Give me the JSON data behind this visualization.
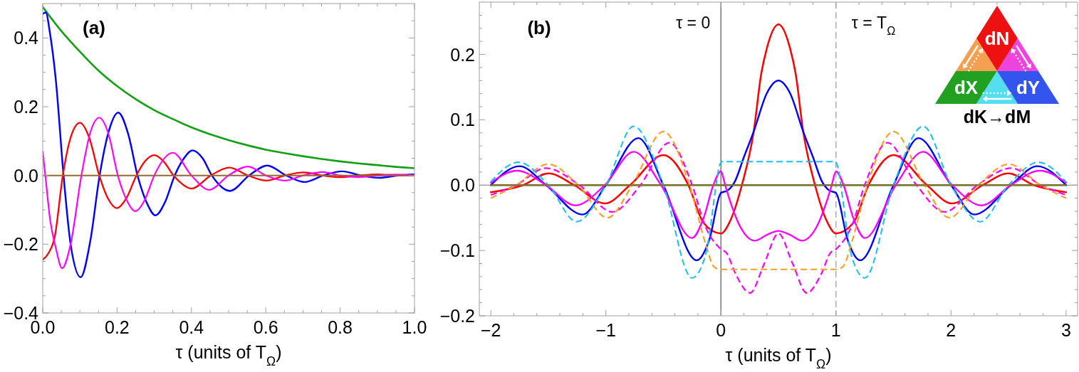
{
  "chart_data": [
    {
      "type": "line",
      "title": "(a)",
      "xlabel": "τ (units of T$_{Ω}$)",
      "xlim": [
        0,
        1
      ],
      "ylim": [
        -0.4,
        0.5
      ],
      "xticks": [
        {
          "value": 0,
          "label": "0.0"
        },
        {
          "value": 0.05,
          "label": null
        },
        {
          "value": 0.1,
          "label": null
        },
        {
          "value": 0.15,
          "label": null
        },
        0.2,
        {
          "value": 0.25,
          "label": null
        },
        {
          "value": 0.3,
          "label": null
        },
        {
          "value": 0.35,
          "label": null
        },
        0.4,
        {
          "value": 0.45,
          "label": null
        },
        {
          "value": 0.5,
          "label": null
        },
        {
          "value": 0.55,
          "label": null
        },
        0.6,
        {
          "value": 0.65,
          "label": null
        },
        {
          "value": 0.7,
          "label": null
        },
        {
          "value": 0.75,
          "label": null
        },
        0.8,
        {
          "value": 0.85,
          "label": null
        },
        {
          "value": 0.9,
          "label": null
        },
        {
          "value": 0.95,
          "label": null
        },
        {
          "value": 1,
          "label": "1.0"
        }
      ],
      "yticks": [
        {
          "value": -0.4,
          "label": "−0.4"
        },
        {
          "value": -0.35,
          "label": null
        },
        {
          "value": -0.3,
          "label": null
        },
        {
          "value": -0.25,
          "label": null
        },
        {
          "value": -0.2,
          "label": "−0.2"
        },
        {
          "value": -0.15,
          "label": null
        },
        {
          "value": -0.1,
          "label": null
        },
        {
          "value": -0.05,
          "label": null
        },
        {
          "value": 0,
          "label": "0.0"
        },
        {
          "value": 0.05,
          "label": null
        },
        {
          "value": 0.1,
          "label": null
        },
        {
          "value": 0.15,
          "label": null
        },
        0.2,
        {
          "value": 0.25,
          "label": null
        },
        {
          "value": 0.3,
          "label": null
        },
        {
          "value": 0.35,
          "label": null
        },
        0.4,
        {
          "value": 0.45,
          "label": null
        }
      ],
      "series": [
        {
          "color": "#14a014",
          "x": [
            0,
            0.05,
            0.1,
            0.15,
            0.2,
            0.25,
            0.3,
            0.35,
            0.4,
            0.45,
            0.5,
            0.55,
            0.6,
            0.65,
            0.7,
            0.75,
            0.8,
            0.85,
            0.9,
            0.95,
            1
          ],
          "values": [
            0.49,
            0.42,
            0.36,
            0.305,
            0.26,
            0.222,
            0.19,
            0.164,
            0.14,
            0.12,
            0.103,
            0.088,
            0.075,
            0.065,
            0.056,
            0.048,
            0.041,
            0.035,
            0.03,
            0.025,
            0.021
          ]
        },
        {
          "color": "#0000ff",
          "x": [
            0,
            0.008,
            0.02,
            0.035,
            0.056,
            0.075,
            0.102,
            0.128,
            0.153,
            0.178,
            0.203,
            0.23,
            0.255,
            0.28,
            0.303,
            0.33,
            0.355,
            0.38,
            0.403,
            0.43,
            0.455,
            0.504,
            0.555,
            0.604,
            0.655,
            0.704,
            0.755,
            0.805,
            0.855,
            0.905,
            0.955,
            1
          ],
          "values": [
            0.47,
            0.474,
            0.41,
            0.28,
            0,
            -0.2,
            -0.296,
            -0.19,
            0,
            0.13,
            0.183,
            0.12,
            0,
            -0.08,
            -0.116,
            -0.075,
            0,
            0.05,
            0.073,
            0.05,
            0,
            -0.045,
            0,
            0.029,
            0,
            -0.019,
            0,
            0.012,
            0,
            -0.007,
            0,
            0.003
          ]
        },
        {
          "color": "#ff0000",
          "x": [
            0,
            0.016,
            0.032,
            0.054,
            0.075,
            0.1,
            0.125,
            0.152,
            0.175,
            0.199,
            0.225,
            0.252,
            0.275,
            0.3,
            0.325,
            0.352,
            0.401,
            0.452,
            0.502,
            0.552,
            0.602,
            0.652,
            0.702,
            0.752,
            0.802,
            0.852,
            0.902,
            0.952,
            1
          ],
          "values": [
            -0.245,
            -0.225,
            -0.18,
            0,
            0.11,
            0.153,
            0.11,
            0,
            -0.066,
            -0.095,
            -0.066,
            0,
            0.041,
            0.059,
            0.041,
            0,
            -0.038,
            0,
            0.023,
            0,
            -0.015,
            0,
            0.009,
            0,
            -0.005,
            0,
            0.003,
            0,
            0
          ]
        },
        {
          "color": "#ff00ff",
          "x": [
            0,
            0.007,
            0.02,
            0.035,
            0.052,
            0.075,
            0.104,
            0.128,
            0.152,
            0.177,
            0.202,
            0.225,
            0.249,
            0.275,
            0.3,
            0.35,
            0.4,
            0.448,
            0.5,
            0.552,
            0.6,
            0.651,
            0.7,
            0.753,
            0.8,
            0.85,
            0.9,
            0.95,
            1
          ],
          "values": [
            0.069,
            0,
            -0.13,
            -0.21,
            -0.27,
            -0.2,
            0,
            0.125,
            0.168,
            0.12,
            0,
            -0.07,
            -0.104,
            -0.07,
            0,
            0.066,
            0,
            -0.042,
            0,
            0.026,
            0,
            -0.015,
            0,
            0.01,
            0,
            -0.005,
            0,
            0.003,
            0
          ]
        },
        {
          "color": "#996633",
          "x": [
            0,
            1
          ],
          "values": [
            0,
            0
          ]
        }
      ]
    },
    {
      "type": "line",
      "title": "(b)",
      "xlabel": "τ (units of T$_{Ω}$)",
      "xlim": [
        -2.1,
        3.1
      ],
      "ylim": [
        -0.2,
        0.28
      ],
      "xticks": [
        {
          "value": -2,
          "label": "−2"
        },
        {
          "value": -1.8,
          "label": null
        },
        {
          "value": -1.6,
          "label": null
        },
        {
          "value": -1.4,
          "label": null
        },
        {
          "value": -1.2,
          "label": null
        },
        {
          "value": -1,
          "label": "−1"
        },
        {
          "value": -0.8,
          "label": null
        },
        {
          "value": -0.6,
          "label": null
        },
        {
          "value": -0.4,
          "label": null
        },
        {
          "value": -0.2,
          "label": null
        },
        0,
        {
          "value": 0.2,
          "label": null
        },
        {
          "value": 0.4,
          "label": null
        },
        {
          "value": 0.6,
          "label": null
        },
        {
          "value": 0.8,
          "label": null
        },
        1,
        {
          "value": 1.2,
          "label": null
        },
        {
          "value": 1.4,
          "label": null
        },
        {
          "value": 1.6,
          "label": null
        },
        {
          "value": 1.8,
          "label": null
        },
        2,
        {
          "value": 2.2,
          "label": null
        },
        {
          "value": 2.4,
          "label": null
        },
        {
          "value": 2.6,
          "label": null
        },
        {
          "value": 2.8,
          "label": null
        },
        3
      ],
      "yticks": [
        {
          "value": -0.2,
          "label": "−0.2"
        },
        {
          "value": -0.18,
          "label": null
        },
        {
          "value": -0.16,
          "label": null
        },
        {
          "value": -0.14,
          "label": null
        },
        {
          "value": -0.12,
          "label": null
        },
        {
          "value": -0.1,
          "label": "−0.1"
        },
        {
          "value": -0.08,
          "label": null
        },
        {
          "value": -0.06,
          "label": null
        },
        {
          "value": -0.04,
          "label": null
        },
        {
          "value": -0.02,
          "label": null
        },
        {
          "value": 0,
          "label": "0.0"
        },
        {
          "value": 0.02,
          "label": null
        },
        {
          "value": 0.04,
          "label": null
        },
        {
          "value": 0.06,
          "label": null
        },
        {
          "value": 0.08,
          "label": null
        },
        0.1,
        {
          "value": 0.12,
          "label": null
        },
        {
          "value": 0.14,
          "label": null
        },
        {
          "value": 0.16,
          "label": null
        },
        {
          "value": 0.18,
          "label": null
        },
        0.2,
        {
          "value": 0.22,
          "label": null
        },
        {
          "value": 0.24,
          "label": null
        },
        {
          "value": 0.26,
          "label": null
        }
      ],
      "ref_lines": [
        {
          "axis": "y",
          "value": 0,
          "color": "#808080"
        },
        {
          "axis": "x",
          "value": 0,
          "label": "τ = 0",
          "color": "#555555"
        },
        {
          "axis": "x",
          "value": 1,
          "label": "τ = T$_{Ω}$",
          "color": "#999999",
          "line_style": "dashed"
        }
      ],
      "annotations": [
        "dN",
        "dX",
        "dY",
        "dK→dM"
      ],
      "series": [
        {
          "color": "#14a014",
          "x": [
            -2,
            3
          ],
          "values": [
            0,
            0
          ]
        },
        {
          "color": "#ff0000",
          "x": [
            -2,
            -1.72,
            -1.5,
            -1.275,
            -1.007,
            -0.79,
            -0.5,
            -0.283,
            -0.15,
            0,
            0.08,
            0.182,
            0.285,
            0.35,
            0.4,
            0.5,
            0.6,
            0.65,
            0.715,
            0.818,
            0.92,
            1,
            1.15,
            1.283,
            1.5,
            1.79,
            2.007,
            2.275,
            2.5,
            2.72,
            3
          ],
          "values": [
            -0.011,
            0,
            0.018,
            0,
            -0.028,
            0,
            0.046,
            0,
            -0.058,
            -0.074,
            -0.055,
            0,
            0.082,
            0.17,
            0.21,
            0.246,
            0.21,
            0.17,
            0.082,
            0,
            -0.055,
            -0.074,
            -0.058,
            0,
            0.046,
            0,
            -0.028,
            0,
            0.018,
            0,
            -0.011
          ]
        },
        {
          "color": "#0000ff",
          "x": [
            -2,
            -1.75,
            -1.52,
            -1.203,
            -1.0,
            -0.717,
            -0.5,
            -0.21,
            -0.1,
            0,
            0.06,
            0.12,
            0.2,
            0.285,
            0.4,
            0.5,
            0.6,
            0.715,
            0.8,
            0.88,
            0.94,
            1,
            1.1,
            1.21,
            1.5,
            1.717,
            2,
            2.203,
            2.52,
            2.75,
            3
          ],
          "values": [
            0,
            0.029,
            0,
            -0.045,
            0,
            0.072,
            0,
            -0.115,
            -0.083,
            -0.012,
            -0.008,
            0.005,
            0.043,
            0.082,
            0.141,
            0.16,
            0.141,
            0.082,
            0.043,
            0.005,
            -0.008,
            -0.012,
            -0.083,
            -0.115,
            0,
            0.072,
            0,
            -0.045,
            0,
            0.029,
            0
          ]
        },
        {
          "color": "#ff00ff",
          "x": [
            -2,
            -1.77,
            -1.52,
            -1.265,
            -1.01,
            -0.758,
            -0.52,
            -0.252,
            -0.15,
            -0.066,
            0,
            0.037,
            0.068,
            0.172,
            0.296,
            0.4,
            0.5,
            0.6,
            0.704,
            0.828,
            0.932,
            0.963,
            1,
            1.066,
            1.15,
            1.252,
            1.52,
            1.758,
            2.01,
            2.265,
            2.52,
            2.77,
            3
          ],
          "values": [
            0.004,
            0.022,
            0,
            -0.031,
            0,
            0.051,
            0,
            -0.081,
            -0.05,
            0,
            0.021,
            0,
            -0.018,
            -0.065,
            -0.085,
            -0.076,
            -0.07,
            -0.076,
            -0.085,
            -0.065,
            -0.018,
            0,
            0.021,
            0,
            -0.05,
            -0.081,
            0,
            0.051,
            0,
            -0.031,
            0,
            0.022,
            0.004
          ]
        },
        {
          "color": "#ff00ff",
          "line_style": "dashed",
          "x": [
            -2,
            -1.78,
            -1.523,
            -1.23,
            -0.944,
            -0.7,
            -0.448,
            -0.25,
            -0.138,
            0,
            0.05,
            0.125,
            0.254,
            0.377,
            0.5,
            0.623,
            0.746,
            0.875,
            0.95,
            1,
            1.138,
            1.25,
            1.448,
            1.7,
            1.944,
            2.23,
            2.523,
            2.78,
            3
          ],
          "values": [
            -0.015,
            0,
            0.026,
            0,
            -0.041,
            0,
            0.065,
            0,
            -0.062,
            -0.098,
            -0.104,
            -0.135,
            -0.165,
            -0.12,
            -0.074,
            -0.12,
            -0.165,
            -0.135,
            -0.104,
            -0.098,
            -0.062,
            0,
            0.065,
            0,
            -0.041,
            0,
            0.026,
            0,
            -0.015
          ]
        },
        {
          "color": "#fa9f2a",
          "line_style": "dashed",
          "x": [
            -2,
            -1.78,
            -1.502,
            -1.24,
            -0.986,
            -0.77,
            -0.5,
            -0.273,
            -0.138,
            -0.06,
            0,
            0.5,
            1,
            1.06,
            1.138,
            1.273,
            1.5,
            1.77,
            1.986,
            2.24,
            2.502,
            2.78,
            3
          ],
          "values": [
            -0.02,
            0,
            0.032,
            0,
            -0.05,
            0,
            0.082,
            0,
            -0.087,
            -0.125,
            -0.129,
            -0.129,
            -0.129,
            -0.125,
            -0.087,
            0,
            0.082,
            0,
            -0.05,
            0,
            0.032,
            0,
            -0.02
          ]
        },
        {
          "color": "#1ec0f0",
          "line_style": "dashed",
          "x": [
            -2,
            -1.76,
            -1.5,
            -1.254,
            -1.0,
            -0.758,
            -0.5,
            -0.252,
            -0.138,
            -0.1,
            -0.05,
            -0.014,
            0.01,
            0.5,
            0.99,
            1.014,
            1.05,
            1.1,
            1.138,
            1.252,
            1.5,
            1.758,
            2,
            2.254,
            2.5,
            2.76,
            3
          ],
          "values": [
            0.005,
            0.035,
            0,
            -0.056,
            0,
            0.09,
            0,
            -0.142,
            -0.11,
            -0.075,
            -0.01,
            0.029,
            0.036,
            0.036,
            0.036,
            0.029,
            -0.01,
            -0.075,
            -0.11,
            -0.142,
            0,
            0.09,
            0,
            -0.056,
            0,
            0.035,
            0.005
          ]
        },
        {
          "color": "#996633",
          "x": [
            -2,
            3
          ],
          "values": [
            0,
            0
          ]
        }
      ]
    }
  ]
}
